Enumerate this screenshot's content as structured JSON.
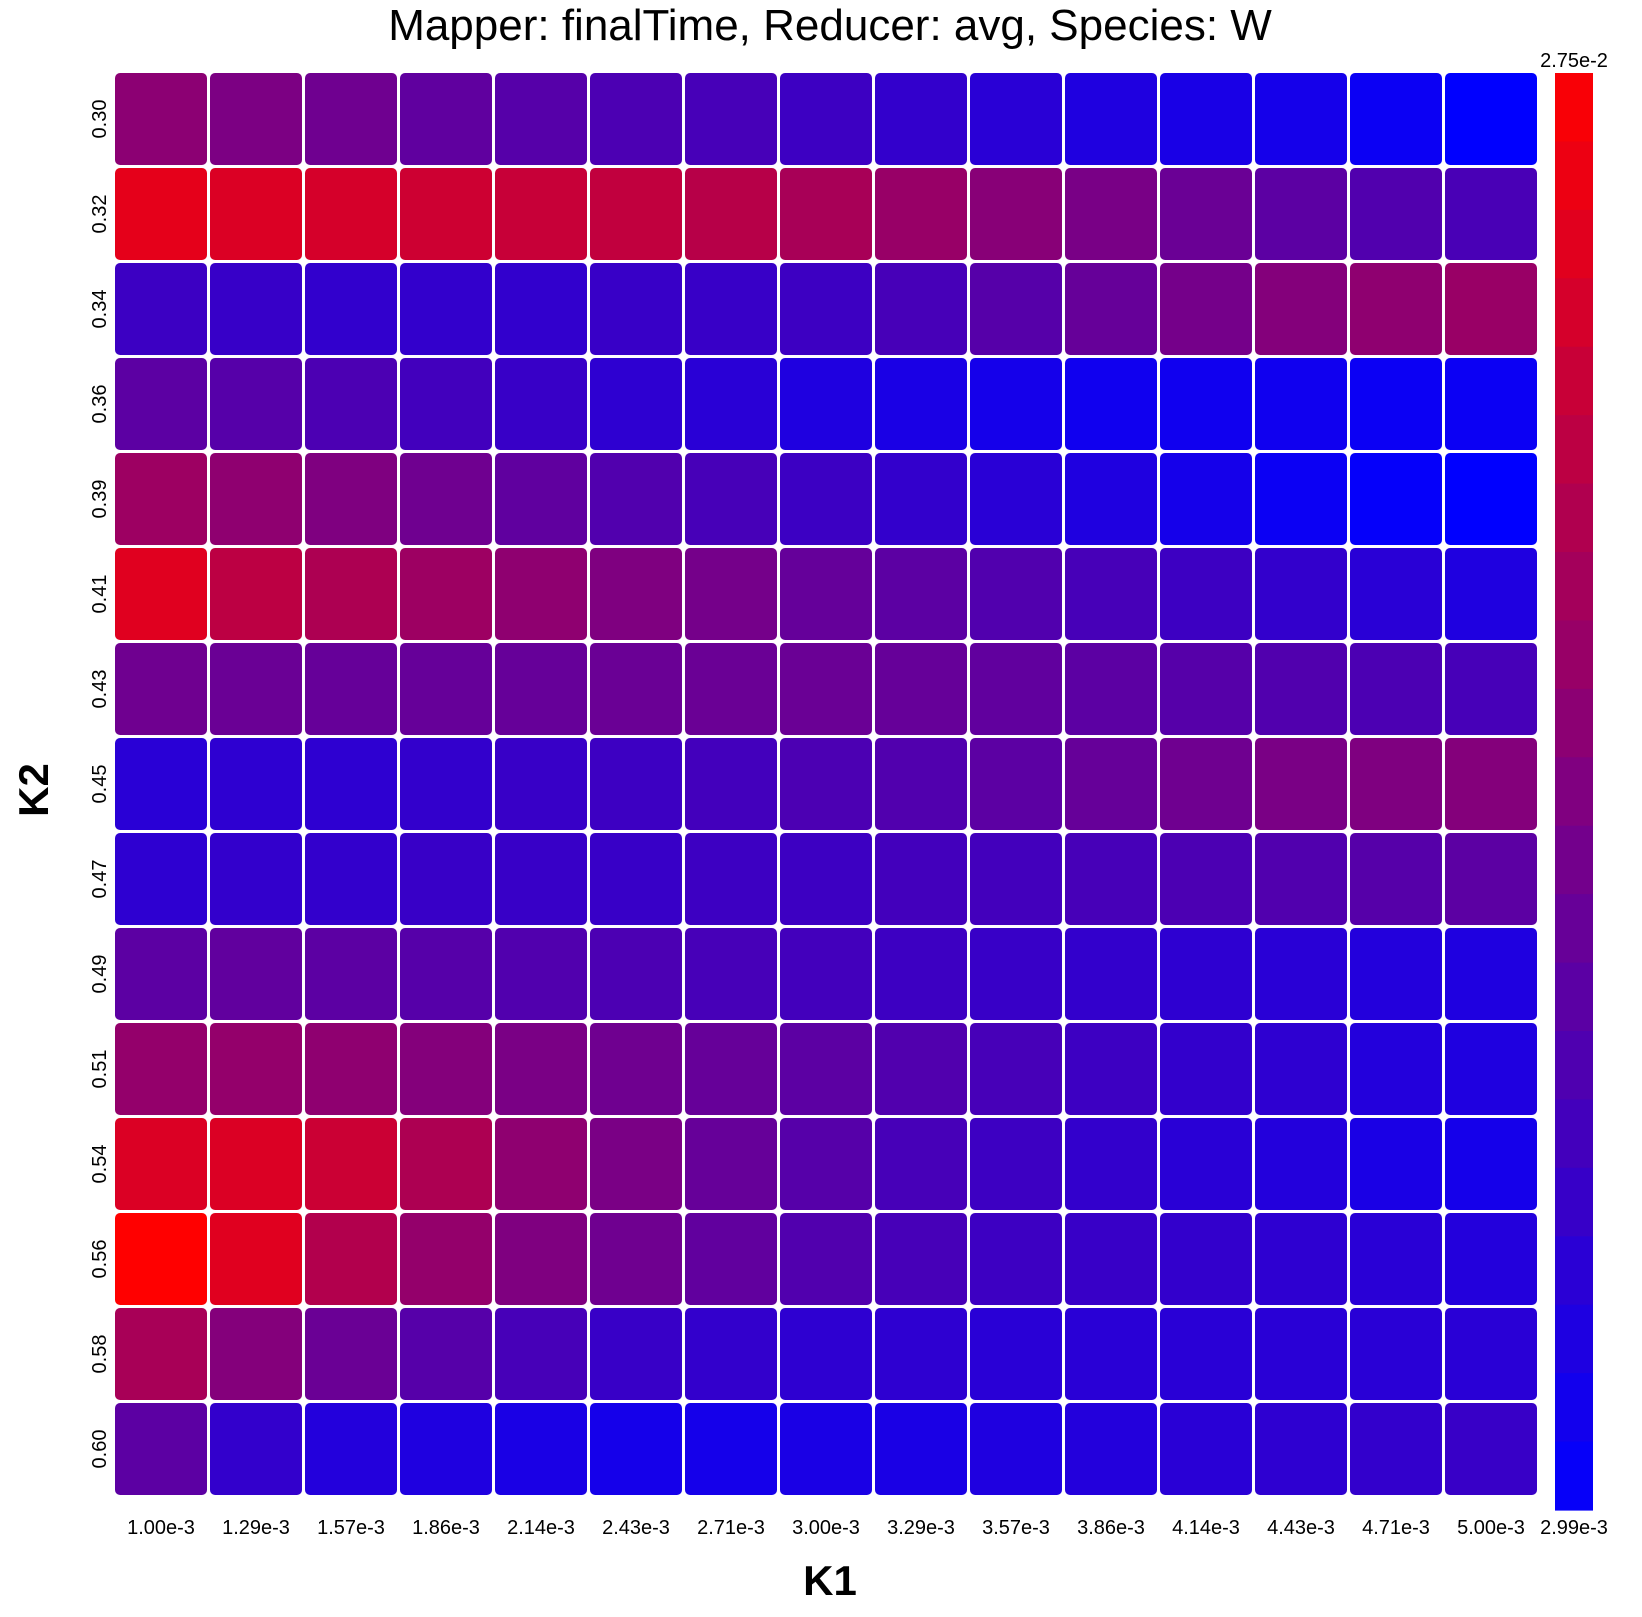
{
  "chart_data": {
    "type": "heatmap",
    "title": "Mapper: finalTime, Reducer: avg, Species: W",
    "xlabel": "K1",
    "ylabel": "K2",
    "x_ticks": [
      "1.00e-3",
      "1.29e-3",
      "1.57e-3",
      "1.86e-3",
      "2.14e-3",
      "2.43e-3",
      "2.71e-3",
      "3.00e-3",
      "3.29e-3",
      "3.57e-3",
      "3.86e-3",
      "4.14e-3",
      "4.43e-3",
      "4.71e-3",
      "5.00e-3"
    ],
    "y_ticks": [
      "0.30",
      "0.32",
      "0.34",
      "0.36",
      "0.39",
      "0.41",
      "0.43",
      "0.45",
      "0.47",
      "0.49",
      "0.51",
      "0.54",
      "0.56",
      "0.58",
      "0.60"
    ],
    "colorscale": {
      "low_color": "#0000ff",
      "high_color": "#ff0000"
    },
    "colorbar": {
      "max_label": "2.75e-2",
      "min_label": "2.99e-3"
    },
    "value_range": [
      0.00299,
      0.0275
    ],
    "values": [
      [
        0.0164,
        0.0149,
        0.0137,
        0.0122,
        0.0113,
        0.0103,
        0.0098,
        0.0089,
        0.0079,
        0.0069,
        0.006,
        0.0054,
        0.005,
        0.004,
        0.003
      ],
      [
        0.025,
        0.024,
        0.0235,
        0.0227,
        0.0221,
        0.0215,
        0.0206,
        0.0191,
        0.0176,
        0.0161,
        0.0146,
        0.0132,
        0.0118,
        0.0108,
        0.01
      ],
      [
        0.0088,
        0.0083,
        0.0078,
        0.0079,
        0.0078,
        0.0084,
        0.0084,
        0.0089,
        0.0098,
        0.0113,
        0.0128,
        0.0142,
        0.0157,
        0.0167,
        0.0177
      ],
      [
        0.0118,
        0.0113,
        0.0103,
        0.0093,
        0.0084,
        0.0074,
        0.0069,
        0.006,
        0.0055,
        0.005,
        0.0045,
        0.0045,
        0.0045,
        0.004,
        0.004
      ],
      [
        0.0181,
        0.0167,
        0.0152,
        0.0137,
        0.0122,
        0.0108,
        0.0098,
        0.0088,
        0.0079,
        0.0069,
        0.006,
        0.005,
        0.004,
        0.0035,
        0.003
      ],
      [
        0.0245,
        0.0211,
        0.0196,
        0.0181,
        0.0167,
        0.0152,
        0.0142,
        0.0127,
        0.0118,
        0.0108,
        0.0098,
        0.0089,
        0.0079,
        0.0069,
        0.006
      ],
      [
        0.0137,
        0.0132,
        0.0128,
        0.0128,
        0.0128,
        0.0132,
        0.0132,
        0.0132,
        0.0128,
        0.0123,
        0.0118,
        0.0113,
        0.0108,
        0.0103,
        0.0098
      ],
      [
        0.0069,
        0.0074,
        0.0074,
        0.0079,
        0.0084,
        0.0089,
        0.0094,
        0.0103,
        0.0108,
        0.0118,
        0.0128,
        0.0137,
        0.0147,
        0.0152,
        0.0157
      ],
      [
        0.0074,
        0.0079,
        0.0079,
        0.0084,
        0.0084,
        0.0084,
        0.0089,
        0.0089,
        0.0094,
        0.0094,
        0.0098,
        0.0103,
        0.0108,
        0.0113,
        0.0118
      ],
      [
        0.0118,
        0.0123,
        0.0118,
        0.0113,
        0.0108,
        0.0103,
        0.0098,
        0.0094,
        0.0089,
        0.0084,
        0.0079,
        0.0074,
        0.0069,
        0.0064,
        0.006
      ],
      [
        0.0172,
        0.0172,
        0.0167,
        0.0157,
        0.0147,
        0.0137,
        0.0128,
        0.0118,
        0.0108,
        0.0098,
        0.0089,
        0.0079,
        0.0074,
        0.0064,
        0.006
      ],
      [
        0.024,
        0.024,
        0.0225,
        0.0196,
        0.0167,
        0.0147,
        0.0128,
        0.0113,
        0.0098,
        0.0089,
        0.0079,
        0.0069,
        0.0064,
        0.0055,
        0.005
      ],
      [
        0.0275,
        0.0245,
        0.0201,
        0.0172,
        0.0152,
        0.0137,
        0.0123,
        0.0108,
        0.0098,
        0.0089,
        0.0084,
        0.0079,
        0.0074,
        0.0069,
        0.0064
      ],
      [
        0.0191,
        0.0157,
        0.0132,
        0.0113,
        0.0098,
        0.0084,
        0.0079,
        0.0074,
        0.0074,
        0.0069,
        0.0069,
        0.0069,
        0.0069,
        0.0069,
        0.0069
      ],
      [
        0.0118,
        0.0079,
        0.0064,
        0.006,
        0.0055,
        0.005,
        0.005,
        0.0055,
        0.0055,
        0.006,
        0.0064,
        0.0069,
        0.0074,
        0.0079,
        0.0084
      ]
    ]
  }
}
